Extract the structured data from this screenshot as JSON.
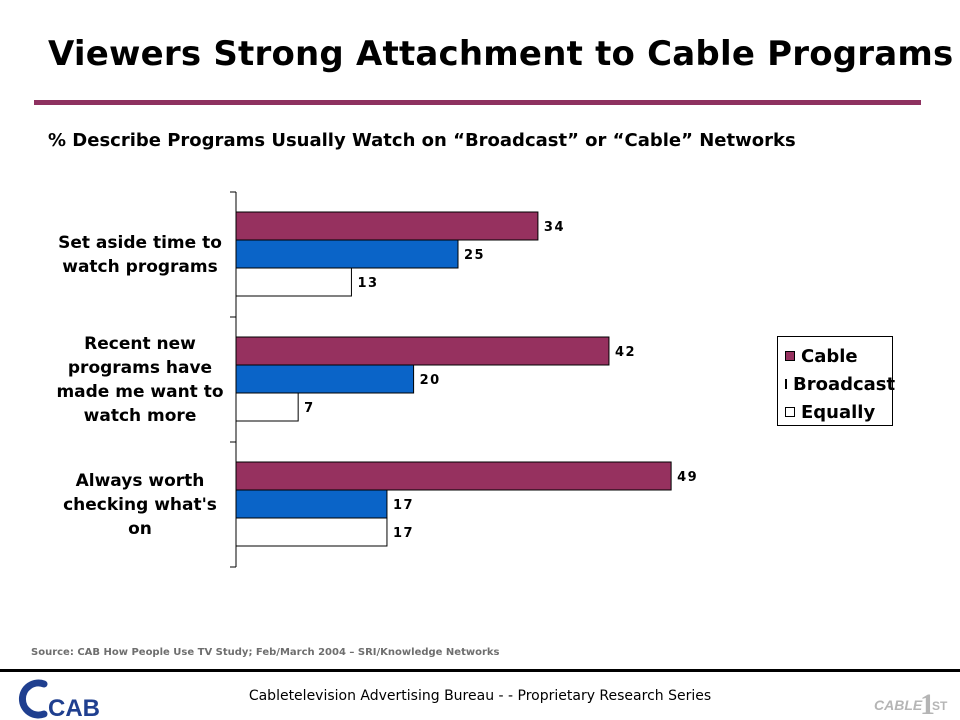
{
  "header": {
    "title": "Viewers Strong Attachment to Cable Programs",
    "subtitle": "% Describe Programs Usually Watch on “Broadcast” or “Cable” Networks"
  },
  "chart_data": {
    "type": "bar",
    "orientation": "horizontal",
    "categories": [
      "Set aside time to watch programs",
      "Recent new programs have made me want to watch more",
      "Always worth checking what's on"
    ],
    "category_lines": [
      [
        "Set aside time to",
        "watch programs"
      ],
      [
        "Recent new",
        "programs have",
        "made me want to",
        "watch more"
      ],
      [
        "Always worth",
        "checking what's",
        "on"
      ]
    ],
    "series": [
      {
        "name": "Cable",
        "values": [
          34,
          42,
          49
        ],
        "color": "#96315f"
      },
      {
        "name": "Broadcast",
        "values": [
          25,
          20,
          17
        ],
        "color": "#0a64c8"
      },
      {
        "name": "Equally",
        "values": [
          13,
          7,
          17
        ],
        "color": "#ffffff"
      }
    ],
    "xlim": [
      0,
      100
    ],
    "grid": false,
    "data_labels": true,
    "legend_position": "right"
  },
  "source": "Source: CAB How People Use TV Study; Feb/March 2004 – SRI/Knowledge Networks",
  "footer": {
    "text": "Cabletelevision Advertising Bureau - - Proprietary Research Series",
    "logo_left_text": "CAB",
    "logo_right_text": "CABLE",
    "logo_right_number": "1",
    "logo_right_suffix": "ST"
  },
  "colors": {
    "accent": "#8e3160",
    "cable": "#96315f",
    "broadcast": "#0a64c8",
    "equally": "#ffffff",
    "logo_blue": "#1f3f8f",
    "logo_gray": "#b5b5b5"
  }
}
